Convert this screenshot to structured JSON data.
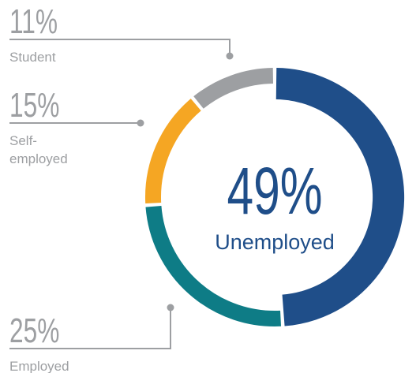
{
  "chart_data": {
    "type": "pie",
    "categories": [
      "Unemployed",
      "Employed",
      "Self-employed",
      "Student"
    ],
    "values": [
      49,
      25,
      15,
      11
    ],
    "units": "%",
    "center": {
      "value": "49%",
      "label": "Unemployed"
    },
    "labels": [
      {
        "value": "11%",
        "lines": [
          "Student"
        ]
      },
      {
        "value": "15%",
        "lines": [
          "Self-",
          "employed"
        ]
      },
      {
        "value": "25%",
        "lines": [
          "Employed"
        ]
      }
    ],
    "colors": {
      "Unemployed": "#1f4e89",
      "Employed": "#0e7c86",
      "Self-employed": "#f5a623",
      "Student": "#9d9fa2",
      "label_text": "#9d9fa2",
      "leader_line": "#9d9fa2"
    }
  }
}
